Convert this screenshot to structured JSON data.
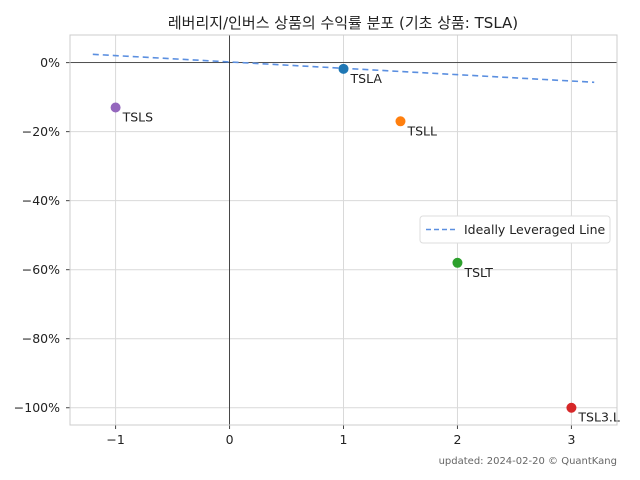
{
  "chart_data": {
    "type": "scatter",
    "title": "레버리지/인버스 상품의 수익률 분포 (기초 상품: TSLA)",
    "xlim": [
      -1.4,
      3.4
    ],
    "ylim": [
      -105,
      8
    ],
    "x_ticks": [
      -1,
      0,
      1,
      2,
      3
    ],
    "x_tick_labels": [
      "−1",
      "0",
      "1",
      "2",
      "3"
    ],
    "y_ticks": [
      0,
      -20,
      -40,
      -60,
      -80,
      -100
    ],
    "y_tick_labels": [
      "0%",
      "−20%",
      "−40%",
      "−60%",
      "−80%",
      "−100%"
    ],
    "grid": true,
    "points": [
      {
        "label": "TSLA",
        "x": 1,
        "y": -1.8,
        "color": "#1f77b4"
      },
      {
        "label": "TSLS",
        "x": -1,
        "y": -13,
        "color": "#9467bd"
      },
      {
        "label": "TSLL",
        "x": 1.5,
        "y": -17,
        "color": "#ff7f0e"
      },
      {
        "label": "TSLT",
        "x": 2,
        "y": -58,
        "color": "#2ca02c"
      },
      {
        "label": "TSL3.L",
        "x": 3,
        "y": -100,
        "color": "#d62728"
      }
    ],
    "reference_line": {
      "name": "Ideally Leveraged Line",
      "x": [
        -1.2,
        3.2
      ],
      "y": [
        2.4,
        -5.7
      ],
      "color": "#5b8fe0",
      "style": "dashed"
    },
    "legend_position": "center-right"
  },
  "footer": {
    "text": "updated: 2024-02-20 © QuantKang"
  }
}
